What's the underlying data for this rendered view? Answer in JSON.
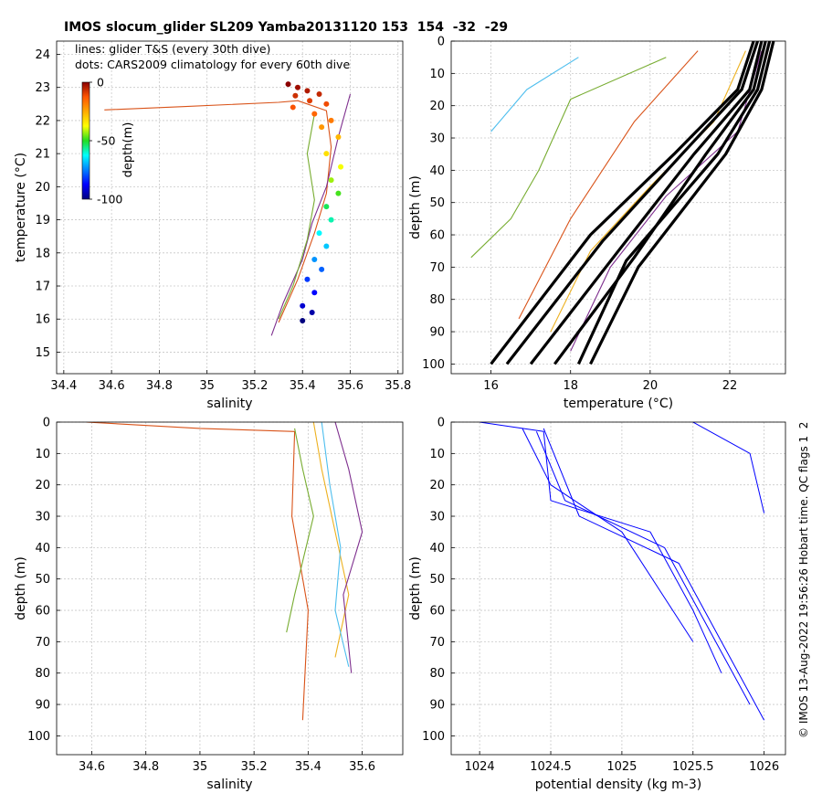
{
  "title": "IMOS slocum_glider SL209 Yamba20131120 153  154  -32  -29",
  "credit": "© IMOS 13-Aug-2022 19:56:26 Hobart time. QC flags 1  2",
  "colors": {
    "series_blue": "#0000ff",
    "climatology_black": "#000000",
    "grid": "#c8c8c8"
  },
  "chart_data": [
    {
      "id": "ts",
      "type": "scatter",
      "xlabel": "salinity",
      "ylabel": "temperature (°C)",
      "xlim": [
        34.37,
        35.82
      ],
      "ylim": [
        14.35,
        24.4
      ],
      "xticks": [
        34.4,
        34.6,
        34.8,
        35,
        35.2,
        35.4,
        35.6,
        35.8
      ],
      "yticks": [
        15,
        16,
        17,
        18,
        19,
        20,
        21,
        22,
        23,
        24
      ],
      "grid": true,
      "legend_lines": "lines: glider T&S (every 30th dive)",
      "legend_dots": "dots: CARS2009 climatology for every 60th dive",
      "colorbar": {
        "label": "depth(m)",
        "ticks": [
          0,
          -50,
          -100
        ],
        "range": [
          -100,
          0
        ]
      },
      "series": [
        {
          "values_salinity_temp": [
            [
              34.57,
              22.32
            ],
            [
              34.9,
              22.42
            ],
            [
              35.3,
              22.55
            ],
            [
              35.38,
              22.6
            ],
            [
              35.5,
              22.3
            ],
            [
              35.52,
              21.2
            ],
            [
              35.5,
              19.8
            ],
            [
              35.45,
              18.6
            ],
            [
              35.38,
              17.2
            ],
            [
              35.3,
              15.9
            ]
          ]
        },
        {
          "values_salinity_temp": [
            [
              35.6,
              22.8
            ],
            [
              35.55,
              21.5
            ],
            [
              35.5,
              20.0
            ],
            [
              35.44,
              18.9
            ],
            [
              35.4,
              17.8
            ],
            [
              35.32,
              16.5
            ],
            [
              35.27,
              15.5
            ]
          ]
        },
        {
          "values_salinity_temp": [
            [
              35.45,
              22.2
            ],
            [
              35.42,
              21.0
            ],
            [
              35.45,
              19.6
            ],
            [
              35.42,
              18.4
            ],
            [
              35.36,
              17.0
            ],
            [
              35.3,
              16.0
            ]
          ]
        }
      ],
      "climatology_points": [
        [
          35.34,
          23.1,
          0
        ],
        [
          35.38,
          23.0,
          -2
        ],
        [
          35.42,
          22.9,
          -4
        ],
        [
          35.47,
          22.8,
          -6
        ],
        [
          35.37,
          22.75,
          -7
        ],
        [
          35.43,
          22.6,
          -9
        ],
        [
          35.5,
          22.5,
          -11
        ],
        [
          35.36,
          22.4,
          -12
        ],
        [
          35.45,
          22.2,
          -15
        ],
        [
          35.52,
          22.0,
          -18
        ],
        [
          35.48,
          21.8,
          -22
        ],
        [
          35.55,
          21.5,
          -27
        ],
        [
          35.5,
          21.0,
          -33
        ],
        [
          35.56,
          20.6,
          -38
        ],
        [
          35.52,
          20.2,
          -43
        ],
        [
          35.55,
          19.8,
          -48
        ],
        [
          35.5,
          19.4,
          -53
        ],
        [
          35.52,
          19.0,
          -58
        ],
        [
          35.47,
          18.6,
          -63
        ],
        [
          35.5,
          18.2,
          -68
        ],
        [
          35.45,
          17.8,
          -73
        ],
        [
          35.48,
          17.5,
          -78
        ],
        [
          35.42,
          17.2,
          -82
        ],
        [
          35.45,
          16.8,
          -87
        ],
        [
          35.4,
          16.4,
          -92
        ],
        [
          35.44,
          16.2,
          -96
        ],
        [
          35.4,
          15.95,
          -100
        ]
      ]
    },
    {
      "id": "temp_depth",
      "type": "line",
      "xlabel": "temperature (°C)",
      "ylabel": "depth (m)",
      "xlim": [
        15.0,
        23.4
      ],
      "ylim": [
        0,
        103
      ],
      "y_reversed": true,
      "xticks": [
        16,
        18,
        20,
        22
      ],
      "yticks": [
        0,
        10,
        20,
        30,
        40,
        50,
        60,
        70,
        80,
        90,
        100
      ],
      "grid": true,
      "series": [
        {
          "x": [
            21.2,
            19.6,
            18.0,
            16.7
          ],
          "y": [
            3,
            25,
            55,
            86
          ]
        },
        {
          "x": [
            22.4,
            21.6,
            20.0,
            18.5,
            17.5
          ],
          "y": [
            3,
            25,
            45,
            65,
            90
          ]
        },
        {
          "x": [
            22.8,
            22.2,
            20.4,
            19.0,
            18.0
          ],
          "y": [
            3,
            28,
            48,
            70,
            96
          ]
        },
        {
          "x": [
            20.4,
            18.0,
            17.2,
            16.5,
            15.5
          ],
          "y": [
            5,
            18,
            40,
            55,
            67
          ]
        },
        {
          "x": [
            18.2,
            16.9,
            16.0
          ],
          "y": [
            5,
            15,
            28
          ]
        }
      ],
      "climatology_profiles": [
        {
          "x": [
            22.6,
            22.2,
            20.6,
            18.5,
            16.0
          ],
          "y": [
            0,
            15,
            35,
            60,
            100
          ]
        },
        {
          "x": [
            22.7,
            22.3,
            20.8,
            18.8,
            16.4
          ],
          "y": [
            0,
            15,
            35,
            62,
            100
          ]
        },
        {
          "x": [
            22.8,
            22.5,
            21.1,
            19.2,
            17.0
          ],
          "y": [
            0,
            15,
            35,
            65,
            100
          ]
        },
        {
          "x": [
            22.9,
            22.6,
            21.4,
            19.6,
            17.6
          ],
          "y": [
            0,
            15,
            35,
            67,
            100
          ]
        },
        {
          "x": [
            23.0,
            22.7,
            21.7,
            19.4,
            18.2
          ],
          "y": [
            0,
            15,
            35,
            68,
            100
          ]
        },
        {
          "x": [
            23.1,
            22.8,
            21.9,
            19.7,
            18.5
          ],
          "y": [
            0,
            15,
            35,
            70,
            100
          ]
        }
      ]
    },
    {
      "id": "sal_depth",
      "type": "line",
      "xlabel": "salinity",
      "ylabel": "depth (m)",
      "xlim": [
        34.47,
        35.75
      ],
      "ylim": [
        0,
        106
      ],
      "y_reversed": true,
      "xticks": [
        34.6,
        34.8,
        35,
        35.2,
        35.4,
        35.6
      ],
      "yticks": [
        0,
        10,
        20,
        30,
        40,
        50,
        60,
        70,
        80,
        90,
        100
      ],
      "grid": true,
      "series": [
        {
          "x": [
            34.58,
            35.0,
            35.35,
            35.34,
            35.4,
            35.38
          ],
          "y": [
            0,
            2,
            3,
            30,
            60,
            95
          ]
        },
        {
          "x": [
            35.42,
            35.45,
            35.5,
            35.55,
            35.5
          ],
          "y": [
            0,
            15,
            35,
            55,
            75
          ]
        },
        {
          "x": [
            35.5,
            35.55,
            35.6,
            35.53,
            35.56
          ],
          "y": [
            0,
            15,
            35,
            55,
            80
          ]
        },
        {
          "x": [
            35.35,
            35.38,
            35.42,
            35.35,
            35.32
          ],
          "y": [
            2,
            15,
            30,
            55,
            67
          ]
        },
        {
          "x": [
            35.45,
            35.48,
            35.52,
            35.5,
            35.55
          ],
          "y": [
            0,
            20,
            40,
            60,
            78
          ]
        }
      ]
    },
    {
      "id": "dens_depth",
      "type": "line",
      "xlabel": "potential density (kg m-3)",
      "ylabel": "depth (m)",
      "xlim": [
        1023.8,
        1026.15
      ],
      "ylim": [
        0,
        106
      ],
      "y_reversed": true,
      "xticks": [
        1024,
        1024.5,
        1025,
        1025.5,
        1026
      ],
      "yticks": [
        0,
        10,
        20,
        30,
        40,
        50,
        60,
        70,
        80,
        90,
        100
      ],
      "grid": true,
      "series": [
        {
          "x": [
            1024.0,
            1024.45,
            1024.5,
            1025.2,
            1025.5,
            1025.7
          ],
          "y": [
            0,
            3,
            25,
            35,
            60,
            80
          ]
        },
        {
          "x": [
            1024.4,
            1024.6,
            1025.3,
            1025.6,
            1025.9
          ],
          "y": [
            3,
            25,
            40,
            65,
            90
          ]
        },
        {
          "x": [
            1024.45,
            1024.7,
            1025.4,
            1026.0
          ],
          "y": [
            2,
            30,
            45,
            95
          ]
        },
        {
          "x": [
            1024.3,
            1024.5,
            1025.0,
            1025.5
          ],
          "y": [
            2,
            20,
            35,
            70
          ]
        },
        {
          "x": [
            1025.5,
            1025.9,
            1026.0
          ],
          "y": [
            0,
            10,
            29
          ]
        }
      ]
    }
  ]
}
